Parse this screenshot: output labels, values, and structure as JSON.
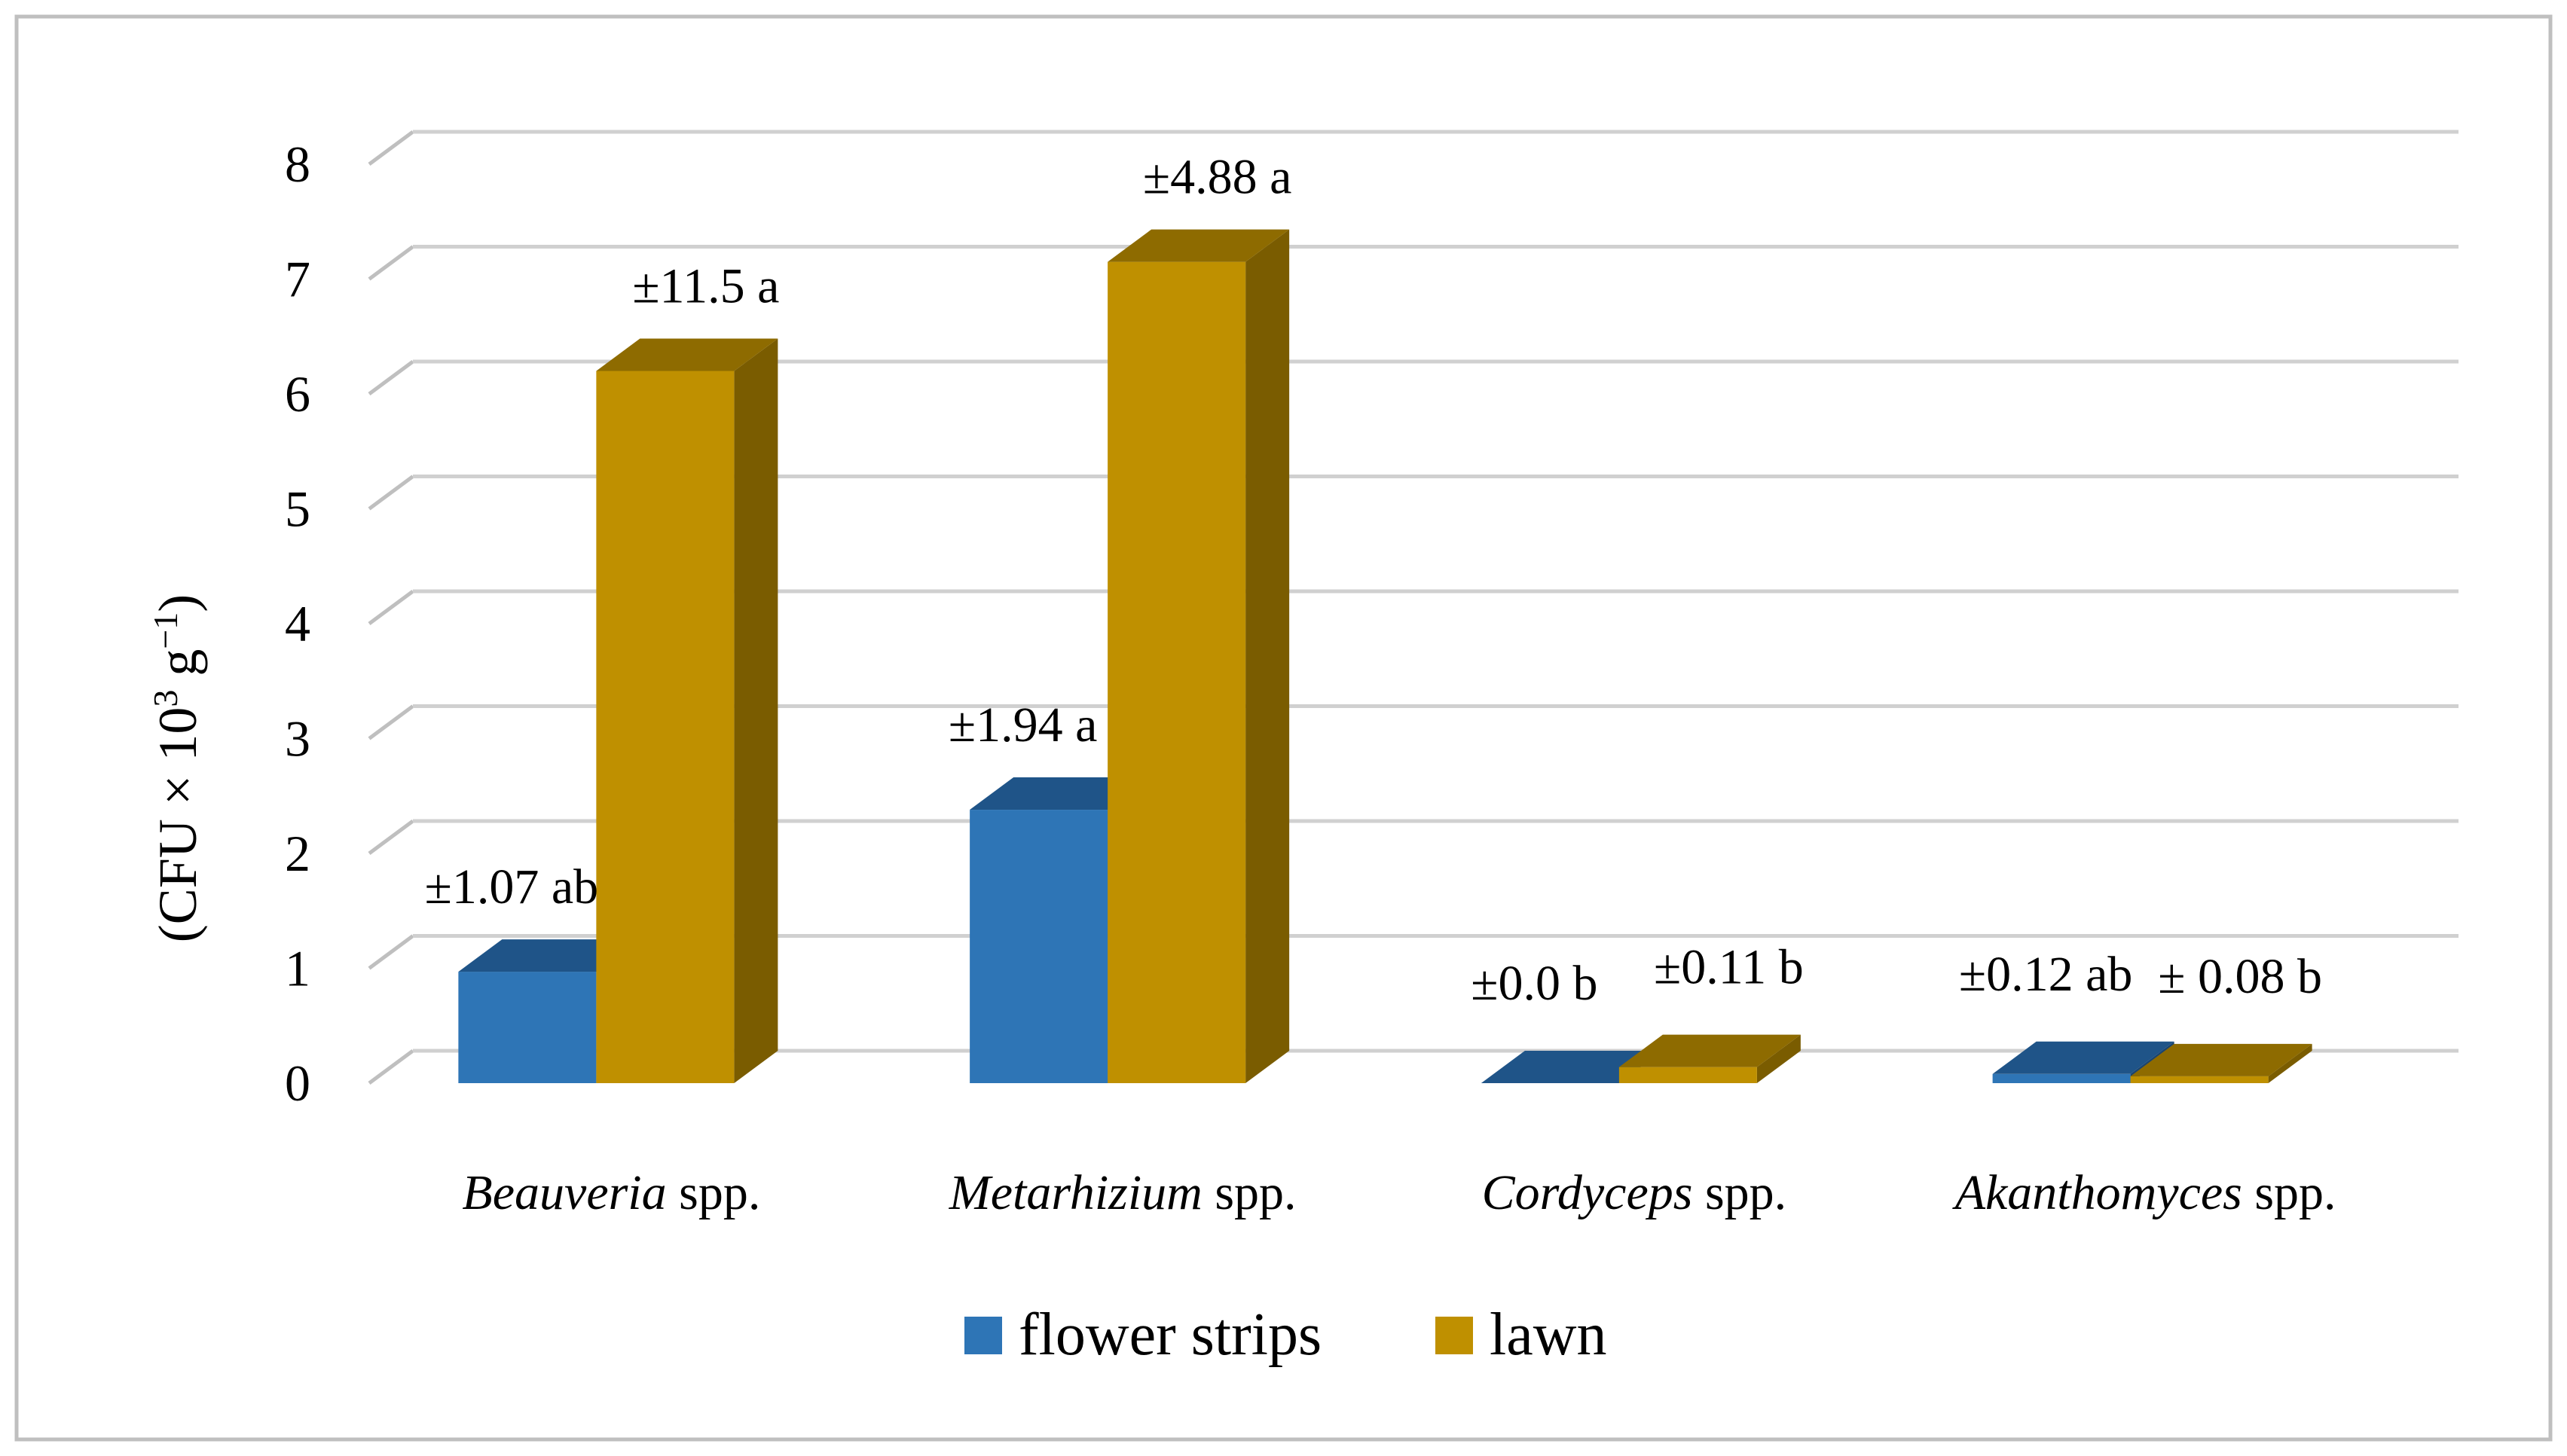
{
  "chart_data": {
    "type": "bar",
    "style": "3d-clustered-column",
    "title": "",
    "xlabel": "",
    "ylabel": {
      "prefix": "(CFU × 10",
      "sup1": "3",
      "middle": " g",
      "sup2": "−1",
      "suffix": ")"
    },
    "ylim": [
      0,
      8
    ],
    "yticks": [
      "0",
      "1",
      "2",
      "3",
      "4",
      "5",
      "6",
      "7",
      "8"
    ],
    "grid": true,
    "legend_position": "bottom",
    "categories": [
      {
        "genus": "Beauveria",
        "suffix": " spp."
      },
      {
        "genus": "Metarhizium",
        "suffix": " spp."
      },
      {
        "genus": "Cordyceps",
        "suffix": " spp."
      },
      {
        "genus": "Akanthomyces",
        "suffix": " spp."
      }
    ],
    "series": [
      {
        "name": "flower strips",
        "color": "#2E75B6",
        "top_color": "#1F5488",
        "side_color": "#1A4470",
        "values": [
          0.97,
          2.38,
          0.0,
          0.08
        ],
        "labels": [
          "±1.07 ab",
          "±1.94 a",
          "±0.0 b",
          "±0.12 ab"
        ]
      },
      {
        "name": "lawn",
        "color": "#BF9000",
        "top_color": "#8E6B00",
        "side_color": "#7A5C00",
        "values": [
          6.2,
          7.15,
          0.14,
          0.06
        ],
        "labels": [
          "±11.5 a",
          "±4.88 a",
          "±0.11 b",
          "± 0.08 b"
        ]
      }
    ]
  }
}
